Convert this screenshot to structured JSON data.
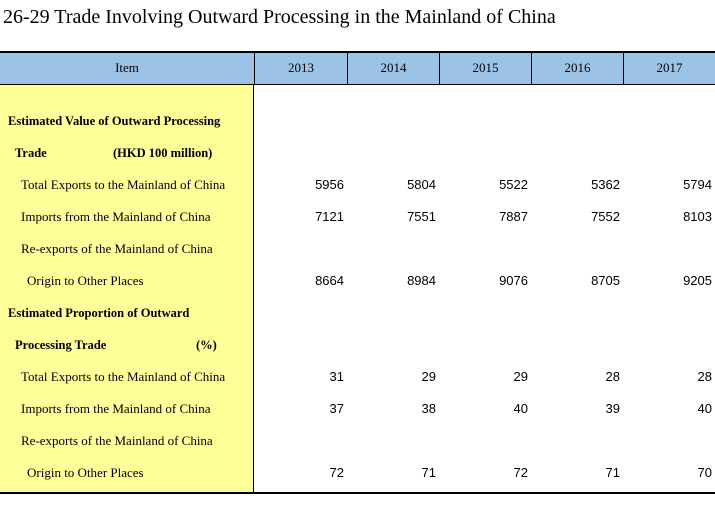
{
  "title": "26-29  Trade Involving Outward Processing in the Mainland of China",
  "header": {
    "item": "Item",
    "years": [
      "2013",
      "2014",
      "2015",
      "2016",
      "2017"
    ]
  },
  "rows": [
    {
      "label": "Estimated Value of Outward Processing",
      "style": "section",
      "values": []
    },
    {
      "label": "Trade",
      "unit": "(HKD 100 million)",
      "style": "section-cont",
      "values": []
    },
    {
      "label": "Total Exports to the Mainland of China",
      "style": "item",
      "values": [
        "5956",
        "5804",
        "5522",
        "5362",
        "5794"
      ]
    },
    {
      "label": "Imports from the Mainland of China",
      "style": "item",
      "values": [
        "7121",
        "7551",
        "7887",
        "7552",
        "8103"
      ]
    },
    {
      "label": "Re-exports of the Mainland of China",
      "style": "item",
      "values": []
    },
    {
      "label": "Origin to Other Places",
      "style": "item-cont",
      "values": [
        "8664",
        "8984",
        "9076",
        "8705",
        "9205"
      ]
    },
    {
      "label": "Estimated Proportion of Outward",
      "style": "section",
      "values": []
    },
    {
      "label": "Processing Trade",
      "unit": "(%)",
      "style": "section-cont",
      "values": []
    },
    {
      "label": "Total Exports to the Mainland of China",
      "style": "item",
      "values": [
        "31",
        "29",
        "29",
        "28",
        "28"
      ]
    },
    {
      "label": "Imports from the Mainland of China",
      "style": "item",
      "values": [
        "37",
        "38",
        "40",
        "39",
        "40"
      ]
    },
    {
      "label": "Re-exports of the Mainland of China",
      "style": "item",
      "values": []
    },
    {
      "label": "Origin to Other Places",
      "style": "item-cont",
      "values": [
        "72",
        "71",
        "72",
        "71",
        "70"
      ]
    }
  ],
  "colors": {
    "header_bg": "#9cc3e6",
    "item_col_bg": "#ffff99"
  }
}
